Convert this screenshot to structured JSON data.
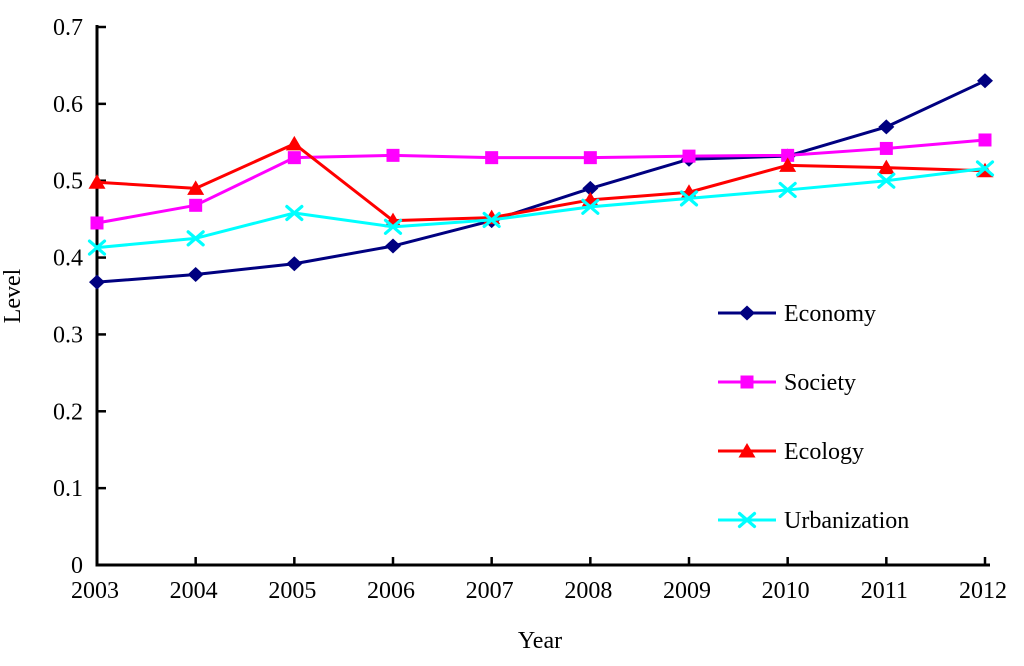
{
  "page": {
    "background": "#ffffff",
    "text_color": "#000000",
    "axis_color": "#000000"
  },
  "chart_data": {
    "type": "line",
    "title": "",
    "xlabel": "Year",
    "ylabel": "Level",
    "x_labels": [
      "2003",
      "2004",
      "2005",
      "2006",
      "2007",
      "2008",
      "2009",
      "2010",
      "2011",
      "2012"
    ],
    "ylim": [
      0,
      0.7
    ],
    "ytick_values": [
      0,
      0.1,
      0.2,
      0.3,
      0.4,
      0.5,
      0.6,
      0.7
    ],
    "ytick_labels": [
      "0",
      "0.1",
      "0.2",
      "0.3",
      "0.4",
      "0.5",
      "0.6",
      "0.7"
    ],
    "grid": false,
    "legend_position": "middle-right",
    "series": [
      {
        "name": "Economy",
        "color": "#000080",
        "marker": "diamond",
        "values": [
          0.368,
          0.378,
          0.392,
          0.415,
          0.448,
          0.49,
          0.528,
          0.532,
          0.57,
          0.63
        ]
      },
      {
        "name": "Society",
        "color": "#FF00FF",
        "marker": "square",
        "values": [
          0.445,
          0.468,
          0.53,
          0.533,
          0.53,
          0.53,
          0.532,
          0.533,
          0.542,
          0.553
        ]
      },
      {
        "name": "Ecology",
        "color": "#FF0000",
        "marker": "triangle",
        "values": [
          0.498,
          0.49,
          0.548,
          0.448,
          0.452,
          0.475,
          0.485,
          0.52,
          0.517,
          0.513
        ]
      },
      {
        "name": "Urbanization",
        "color": "#00FFFF",
        "marker": "x",
        "values": [
          0.413,
          0.425,
          0.458,
          0.44,
          0.449,
          0.466,
          0.477,
          0.488,
          0.5,
          0.516
        ]
      }
    ]
  }
}
